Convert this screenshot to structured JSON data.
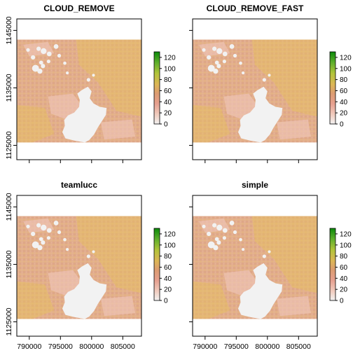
{
  "chart_data": [
    {
      "type": "heatmap",
      "title": "CLOUD_REMOVE",
      "xlim": [
        788000,
        808000
      ],
      "ylim": [
        1122500,
        1147000
      ],
      "x_ticks": [
        790000,
        795000,
        800000,
        805000
      ],
      "y_ticks": [
        1125000,
        1135000,
        1145000
      ],
      "x_tick_labels_shown": false,
      "y_tick_labels_shown": true,
      "legend": {
        "values": [
          0,
          20,
          40,
          60,
          80,
          100,
          120
        ],
        "range": [
          0,
          130
        ],
        "position": "right"
      }
    },
    {
      "type": "heatmap",
      "title": "CLOUD_REMOVE_FAST",
      "xlim": [
        788000,
        808000
      ],
      "ylim": [
        1122500,
        1147000
      ],
      "x_ticks": [
        790000,
        795000,
        800000,
        805000
      ],
      "y_ticks": [
        1125000,
        1135000,
        1145000
      ],
      "x_tick_labels_shown": false,
      "y_tick_labels_shown": false,
      "legend": {
        "values": [
          0,
          20,
          40,
          60,
          80,
          100,
          120
        ],
        "range": [
          0,
          130
        ],
        "position": "right"
      }
    },
    {
      "type": "heatmap",
      "title": "teamlucc",
      "xlim": [
        788000,
        808000
      ],
      "ylim": [
        1122500,
        1147000
      ],
      "x_ticks": [
        790000,
        795000,
        800000,
        805000
      ],
      "y_ticks": [
        1125000,
        1135000,
        1145000
      ],
      "x_tick_labels_shown": true,
      "y_tick_labels_shown": true,
      "legend": {
        "values": [
          0,
          20,
          40,
          60,
          80,
          100,
          120
        ],
        "range": [
          0,
          130
        ],
        "position": "right"
      }
    },
    {
      "type": "heatmap",
      "title": "simple",
      "xlim": [
        788000,
        808000
      ],
      "ylim": [
        1122500,
        1147000
      ],
      "x_ticks": [
        790000,
        795000,
        800000,
        805000
      ],
      "y_ticks": [
        1125000,
        1135000,
        1145000
      ],
      "x_tick_labels_shown": true,
      "y_tick_labels_shown": false,
      "legend": {
        "values": [
          0,
          20,
          40,
          60,
          80,
          100,
          120
        ],
        "range": [
          0,
          130
        ],
        "position": "right"
      }
    }
  ],
  "colors": {
    "background": "#ffffff",
    "nodata": "#f2f2f2",
    "raster_low": "#e8b19a",
    "raster_mid": "#e0ad7e",
    "raster_high": "#e6c25c",
    "legend_scale": [
      "#f2f2f2",
      "#f0c4b4",
      "#e6a090",
      "#d88f6a",
      "#d8b550",
      "#a6c43a",
      "#4fae2b",
      "#0a8a0a"
    ]
  }
}
